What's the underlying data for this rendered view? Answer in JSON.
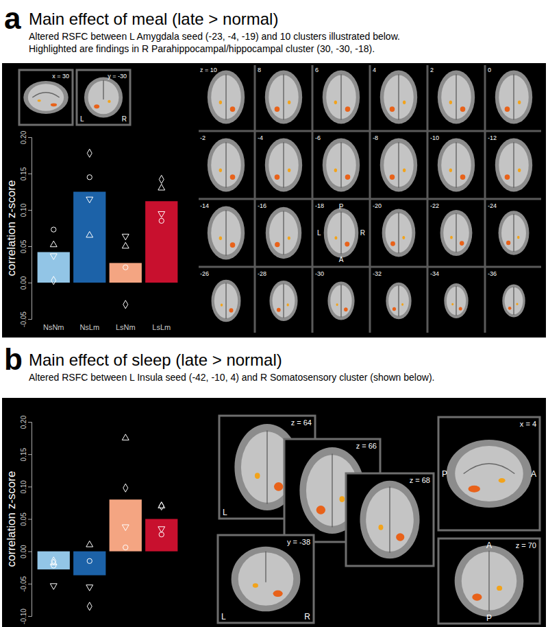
{
  "chart_data": [
    {
      "type": "bar",
      "title": "Main effect of meal (late > normal)",
      "subtitle": [
        "Altered RSFC between L Amygdala seed (-23, -4, -19) and 10 clusters illustrated below.",
        "Highlighted are findings in R Parahippocampal/hippocampal cluster (30, -30, -18)."
      ],
      "ylabel": "correlation z-score",
      "categories": [
        "NsNm",
        "NsLm",
        "LsNm",
        "LsLm"
      ],
      "ylim": [
        -0.05,
        0.2
      ],
      "yticks": [
        {
          "value": -0.05,
          "label": "-0.05"
        },
        {
          "value": 0,
          "label": "0.00"
        },
        {
          "value": 0.05,
          "label": "0.05"
        },
        {
          "value": 0.1,
          "label": "0.10"
        },
        {
          "value": 0.15,
          "label": "0.15"
        },
        {
          "value": 0.2,
          "label": "0.20"
        }
      ],
      "series": [
        {
          "type": "bar",
          "colors": [
            "#92c5e6",
            "#1c62a8",
            "#f4a582",
            "#c8102e"
          ],
          "values": [
            0.042,
            0.125,
            0.027,
            0.112
          ]
        },
        {
          "type": "scatter",
          "marker": "circle",
          "values": [
            0.073,
            0.145,
            0.021,
            0.085
          ]
        },
        {
          "type": "scatter",
          "marker": "triangle-up",
          "values": [
            0.052,
            0.065,
            0.05,
            0.13
          ]
        },
        {
          "type": "scatter",
          "marker": "triangle-down",
          "values": [
            0.037,
            0.115,
            0.064,
            0.095
          ]
        },
        {
          "type": "scatter",
          "marker": "diamond",
          "values": [
            0.003,
            0.178,
            -0.03,
            0.142
          ]
        }
      ]
    },
    {
      "type": "bar",
      "title": "Main effect of sleep (late > normal)",
      "subtitle": [
        "Altered RSFC between L Insula seed (-42, -10, 4) and R Somatosensory cluster (shown below)."
      ],
      "ylabel": "correlation z-score",
      "categories": [
        null,
        null,
        null,
        null
      ],
      "ylim": [
        -0.1,
        0.2
      ],
      "yticks": [
        {
          "value": -0.1,
          "label": "-0.10"
        },
        {
          "value": -0.05,
          "label": "-0.05"
        },
        {
          "value": 0,
          "label": "0.00"
        },
        {
          "value": 0.05,
          "label": "0.05"
        },
        {
          "value": 0.1,
          "label": "0.10"
        },
        {
          "value": 0.15,
          "label": "0.15"
        },
        {
          "value": 0.2,
          "label": "0.20"
        }
      ],
      "series": [
        {
          "type": "bar",
          "colors": [
            "#92c5e6",
            "#1c62a8",
            "#f4a582",
            "#c8102e"
          ],
          "values": [
            -0.028,
            -0.037,
            0.08,
            0.05
          ]
        },
        {
          "type": "scatter",
          "marker": "circle",
          "values": [
            -0.022,
            -0.015,
            0.006,
            0.026
          ]
        },
        {
          "type": "scatter",
          "marker": "triangle-up",
          "values": [
            -0.018,
            0.01,
            0.175,
            0.07
          ]
        },
        {
          "type": "scatter",
          "marker": "triangle-down",
          "values": [
            -0.053,
            -0.055,
            0.038,
            0.035
          ]
        },
        {
          "type": "scatter",
          "marker": "diamond",
          "values": [
            -0.015,
            -0.085,
            0.098,
            0.07
          ]
        }
      ]
    }
  ],
  "panels": [
    {
      "letter": "a",
      "images": [
        {
          "label": "x = 30"
        },
        {
          "label": "y = -30",
          "orient": {
            "bottom_left": "L",
            "bottom_right": "R"
          }
        }
      ],
      "slices": [
        {
          "label": "z = 10"
        },
        {
          "label": "8"
        },
        {
          "label": "6"
        },
        {
          "label": "4"
        },
        {
          "label": "2"
        },
        {
          "label": "0"
        },
        {
          "label": "-2"
        },
        {
          "label": "-4"
        },
        {
          "label": "-6"
        },
        {
          "label": "-8"
        },
        {
          "label": "-10"
        },
        {
          "label": "-12"
        },
        {
          "label": "-14"
        },
        {
          "label": "-16"
        },
        {
          "label": "-18",
          "orient": {
            "top": "P",
            "left": "L",
            "right": "R",
            "bottom": "A"
          }
        },
        {
          "label": "-20"
        },
        {
          "label": "-22"
        },
        {
          "label": "-24"
        },
        {
          "label": "-26"
        },
        {
          "label": "-28"
        },
        {
          "label": "-30"
        },
        {
          "label": "-32"
        },
        {
          "label": "-34"
        },
        {
          "label": "-36"
        }
      ]
    },
    {
      "letter": "b",
      "images": [
        {
          "label": "z = 64",
          "orient": {
            "bottom_left": "L"
          }
        },
        {
          "label": "z = 66"
        },
        {
          "label": "z = 68"
        },
        {
          "label": "x = 4",
          "orient": {
            "left": "P",
            "right": "A"
          }
        },
        {
          "label": "y = -38",
          "orient": {
            "bottom_left": "L",
            "bottom_right": "R"
          }
        },
        {
          "label": "z = 70",
          "orient": {
            "top": "A",
            "bottom": "P"
          }
        }
      ]
    }
  ]
}
